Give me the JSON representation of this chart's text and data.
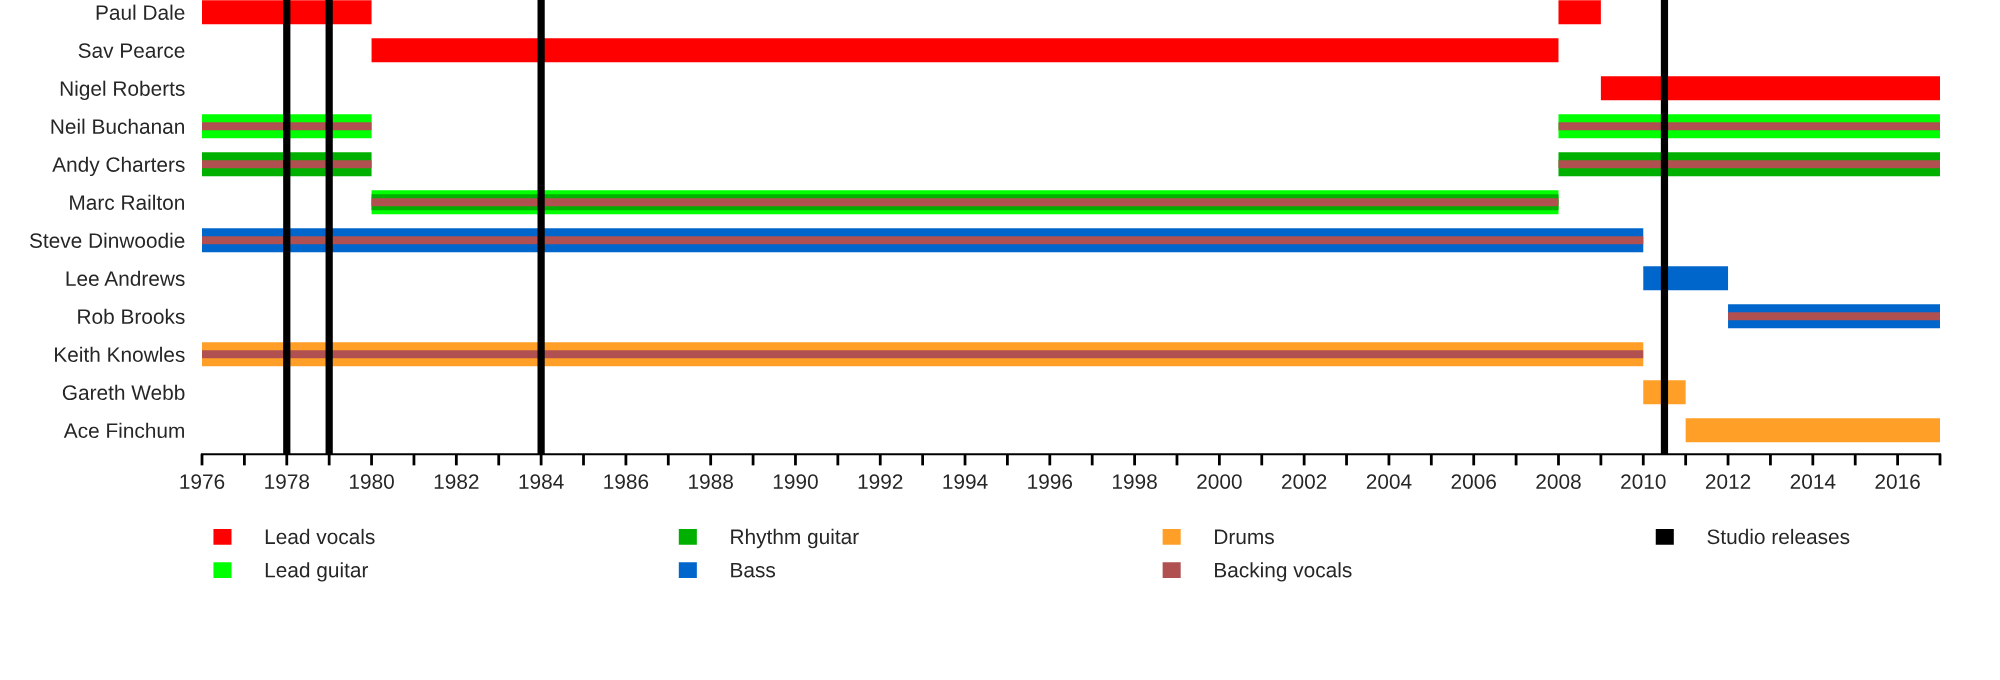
{
  "chart_data": {
    "type": "bar",
    "orientation": "horizontal",
    "categories": [
      "Paul Dale",
      "Sav Pearce",
      "Nigel Roberts",
      "Neil Buchanan",
      "Andy Charters",
      "Marc Railton",
      "Steve Dinwoodie",
      "Lee Andrews",
      "Rob Brooks",
      "Keith Knowles",
      "Gareth Webb",
      "Ace Finchum"
    ],
    "series": [
      {
        "name": "Lead vocals",
        "color": "#ff0000",
        "base": [
          1976,
          1980,
          2009,
          null,
          null,
          null,
          null,
          null,
          null,
          null,
          null,
          null
        ],
        "values": [
          4,
          28,
          8,
          null,
          null,
          null,
          null,
          null,
          null,
          null,
          null,
          null
        ]
      },
      {
        "name": "Lead guitar",
        "color": "#00ff00",
        "base": [
          null,
          null,
          null,
          1976,
          null,
          1980,
          null,
          null,
          null,
          null,
          null,
          null
        ],
        "values": [
          null,
          null,
          null,
          4,
          null,
          28,
          null,
          null,
          null,
          null,
          null,
          null
        ]
      },
      {
        "name": "Rhythm guitar",
        "color": "#00b000",
        "base": [
          null,
          null,
          null,
          null,
          1976,
          1980,
          null,
          null,
          null,
          null,
          null,
          null
        ],
        "values": [
          null,
          null,
          null,
          null,
          4,
          28,
          null,
          null,
          null,
          null,
          null,
          null
        ]
      },
      {
        "name": "Bass",
        "color": "#0066cc",
        "base": [
          null,
          null,
          null,
          null,
          null,
          null,
          1976,
          2010,
          2012,
          null,
          null,
          null
        ],
        "values": [
          null,
          null,
          null,
          null,
          null,
          null,
          34,
          2,
          5,
          null,
          null,
          null
        ]
      },
      {
        "name": "Drums",
        "color": "#ff9f28",
        "base": [
          null,
          null,
          null,
          null,
          null,
          null,
          null,
          null,
          null,
          1976,
          2010,
          2011
        ],
        "values": [
          null,
          null,
          null,
          null,
          null,
          null,
          null,
          null,
          null,
          34,
          1,
          6
        ]
      },
      {
        "name": "Backing vocals",
        "color": "#b05050",
        "base": [
          null,
          null,
          null,
          1976,
          1976,
          1980,
          1976,
          null,
          2012,
          1976,
          null,
          null
        ],
        "values": [
          null,
          null,
          null,
          4,
          4,
          28,
          34,
          null,
          5,
          34,
          null,
          null
        ]
      },
      {
        "color": "#ff0000",
        "base": [
          2008,
          null,
          null,
          null,
          null,
          null,
          null,
          null,
          null,
          null,
          null,
          null
        ],
        "values": [
          1,
          null,
          null,
          null,
          null,
          null,
          null,
          null,
          null,
          null,
          null,
          null
        ]
      },
      {
        "color": "#00ff00",
        "base": [
          null,
          null,
          null,
          2008,
          null,
          null,
          null,
          null,
          null,
          null,
          null,
          null
        ],
        "values": [
          null,
          null,
          null,
          9,
          null,
          null,
          null,
          null,
          null,
          null,
          null,
          null
        ]
      },
      {
        "color": "#00b000",
        "base": [
          null,
          null,
          null,
          null,
          2008,
          null,
          null,
          null,
          null,
          null,
          null,
          null
        ],
        "values": [
          null,
          null,
          null,
          null,
          9,
          null,
          null,
          null,
          null,
          null,
          null,
          null
        ]
      },
      {
        "color": "#b05050",
        "base": [
          null,
          null,
          null,
          2008,
          2008,
          null,
          null,
          null,
          null,
          null,
          null,
          null
        ],
        "values": [
          null,
          null,
          null,
          9,
          9,
          null,
          null,
          null,
          null,
          null,
          null,
          null
        ]
      }
    ],
    "ref_lines": [
      {
        "axis": "x",
        "value": 1978,
        "label": "Studio releases",
        "color": "#000000"
      },
      {
        "axis": "x",
        "value": 1979,
        "color": "#000000"
      },
      {
        "axis": "x",
        "value": 1984,
        "color": "#000000"
      },
      {
        "axis": "x",
        "value": 2010.5,
        "color": "#000000"
      }
    ],
    "xlim": [
      1976,
      2017
    ],
    "xticks": [
      1976,
      {
        "value": 1977,
        "label": null
      },
      1978,
      {
        "value": 1979,
        "label": null
      },
      1980,
      {
        "value": 1981,
        "label": null
      },
      1982,
      {
        "value": 1983,
        "label": null
      },
      1984,
      {
        "value": 1985,
        "label": null
      },
      1986,
      {
        "value": 1987,
        "label": null
      },
      1988,
      {
        "value": 1989,
        "label": null
      },
      1990,
      {
        "value": 1991,
        "label": null
      },
      1992,
      {
        "value": 1993,
        "label": null
      },
      1994,
      {
        "value": 1995,
        "label": null
      },
      1996,
      {
        "value": 1997,
        "label": null
      },
      1998,
      {
        "value": 1999,
        "label": null
      },
      2000,
      {
        "value": 2001,
        "label": null
      },
      2002,
      {
        "value": 2003,
        "label": null
      },
      2004,
      {
        "value": 2005,
        "label": null
      },
      2006,
      {
        "value": 2007,
        "label": null
      },
      2008,
      {
        "value": 2009,
        "label": null
      },
      2010,
      {
        "value": 2011,
        "label": null
      },
      2012,
      {
        "value": 2013,
        "label": null
      },
      2014,
      {
        "value": 2015,
        "label": null
      },
      2016,
      {
        "value": 2017,
        "label": null
      }
    ],
    "legend": "bottom"
  }
}
